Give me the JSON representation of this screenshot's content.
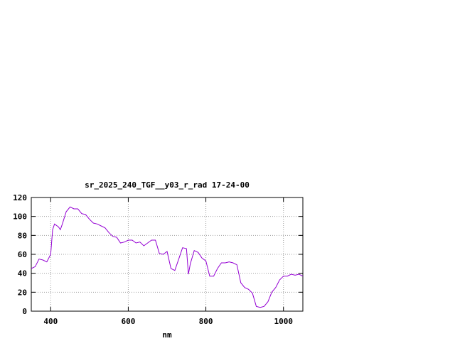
{
  "chart_data": {
    "type": "line",
    "title": "sr_2025_240_TGF__y03_r_rad 17-24-00",
    "xlabel": "nm",
    "ylabel": "",
    "xlim": [
      350,
      1050
    ],
    "ylim": [
      0,
      120
    ],
    "xticks": [
      400,
      600,
      800,
      1000
    ],
    "yticks": [
      0,
      20,
      40,
      60,
      80,
      100,
      120
    ],
    "grid": true,
    "line_color": "#9400d3",
    "series": [
      {
        "x": [
          350,
          360,
          370,
          380,
          390,
          400,
          405,
          410,
          420,
          425,
          430,
          440,
          450,
          460,
          470,
          480,
          490,
          500,
          510,
          520,
          530,
          540,
          550,
          560,
          570,
          580,
          590,
          600,
          610,
          620,
          630,
          640,
          650,
          660,
          670,
          680,
          690,
          700,
          710,
          720,
          730,
          740,
          750,
          755,
          760,
          770,
          780,
          790,
          800,
          810,
          820,
          830,
          840,
          850,
          860,
          870,
          880,
          890,
          900,
          910,
          920,
          930,
          940,
          950,
          960,
          970,
          980,
          990,
          1000,
          1010,
          1020,
          1030,
          1040,
          1050
        ],
        "y": [
          45,
          47,
          55,
          54,
          52,
          60,
          86,
          92,
          89,
          86,
          92,
          105,
          110,
          108,
          108,
          103,
          102,
          97,
          93,
          92,
          90,
          88,
          83,
          79,
          78,
          72,
          73,
          75,
          75,
          72,
          73,
          69,
          72,
          75,
          75,
          61,
          60,
          63,
          45,
          43,
          55,
          67,
          66,
          39,
          50,
          64,
          62,
          56,
          53,
          37,
          37,
          45,
          51,
          51,
          52,
          51,
          49,
          30,
          25,
          23,
          19,
          5,
          4,
          5,
          10,
          20,
          25,
          33,
          37,
          37,
          39,
          38,
          39,
          37
        ]
      }
    ]
  }
}
